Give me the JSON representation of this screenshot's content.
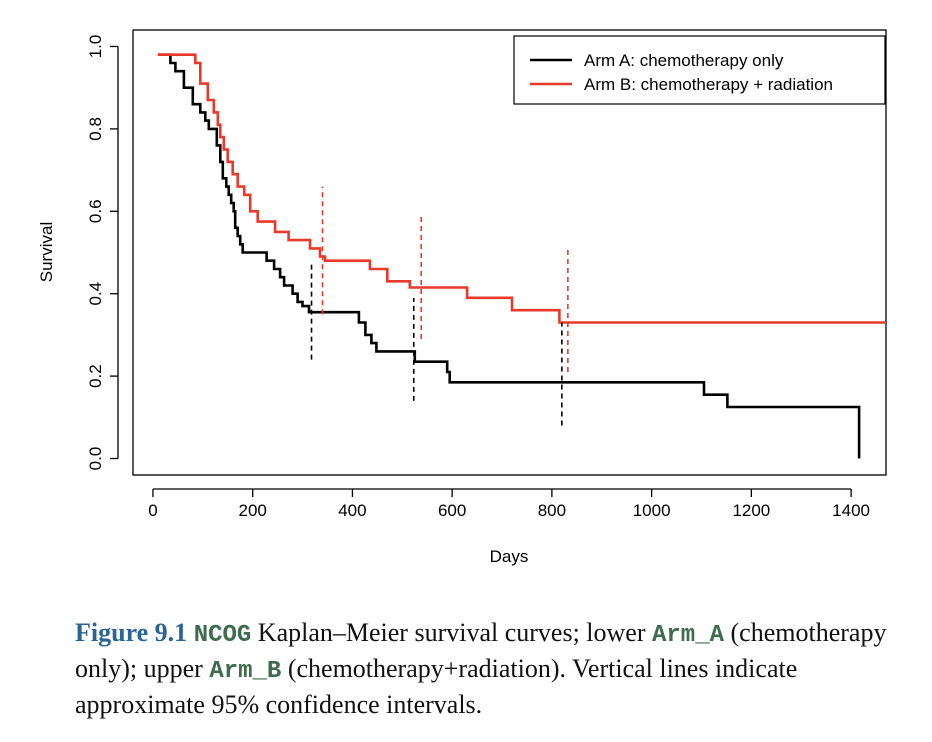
{
  "chart_data": {
    "type": "line",
    "subtype": "kaplan-meier step curves",
    "xlabel": "Days",
    "ylabel": "Survival",
    "xlim": [
      -40,
      1470
    ],
    "ylim": [
      -0.04,
      1.04
    ],
    "x_ticks": [
      0,
      200,
      400,
      600,
      800,
      1000,
      1200,
      1400
    ],
    "y_ticks": [
      0.0,
      0.2,
      0.4,
      0.6,
      0.8,
      1.0
    ],
    "x_tick_labels": [
      "0",
      "200",
      "400",
      "600",
      "800",
      "1000",
      "1200",
      "1400"
    ],
    "y_tick_labels": [
      "0.0",
      "0.2",
      "0.4",
      "0.6",
      "0.8",
      "1.0"
    ],
    "grid": false,
    "legend_position": "top-right",
    "series": [
      {
        "name": "Arm A: chemotherapy only",
        "color": "#000000",
        "steps": [
          [
            10,
            0.98
          ],
          [
            35,
            0.96
          ],
          [
            45,
            0.94
          ],
          [
            62,
            0.9
          ],
          [
            80,
            0.86
          ],
          [
            95,
            0.84
          ],
          [
            105,
            0.82
          ],
          [
            112,
            0.8
          ],
          [
            128,
            0.76
          ],
          [
            135,
            0.72
          ],
          [
            140,
            0.68
          ],
          [
            147,
            0.66
          ],
          [
            152,
            0.64
          ],
          [
            157,
            0.62
          ],
          [
            162,
            0.6
          ],
          [
            165,
            0.56
          ],
          [
            170,
            0.54
          ],
          [
            175,
            0.52
          ],
          [
            180,
            0.5
          ],
          [
            223,
            0.5
          ],
          [
            228,
            0.48
          ],
          [
            243,
            0.46
          ],
          [
            255,
            0.44
          ],
          [
            263,
            0.42
          ],
          [
            280,
            0.4
          ],
          [
            290,
            0.38
          ],
          [
            300,
            0.37
          ],
          [
            313,
            0.355
          ],
          [
            405,
            0.355
          ],
          [
            413,
            0.33
          ],
          [
            426,
            0.3
          ],
          [
            438,
            0.28
          ],
          [
            448,
            0.26
          ],
          [
            520,
            0.26
          ],
          [
            525,
            0.235
          ],
          [
            585,
            0.235
          ],
          [
            590,
            0.21
          ],
          [
            595,
            0.185
          ],
          [
            1100,
            0.185
          ],
          [
            1105,
            0.155
          ],
          [
            1148,
            0.155
          ],
          [
            1152,
            0.125
          ],
          [
            1414,
            0.125
          ],
          [
            1416,
            0.0
          ]
        ],
        "ci_lines": [
          {
            "day": 318,
            "low": 0.24,
            "high": 0.48
          },
          {
            "day": 523,
            "low": 0.14,
            "high": 0.39
          },
          {
            "day": 820,
            "low": 0.08,
            "high": 0.33
          }
        ]
      },
      {
        "name": "Arm B: chemotherapy + radiation",
        "color": "#e8392b",
        "steps": [
          [
            10,
            0.98
          ],
          [
            85,
            0.96
          ],
          [
            95,
            0.91
          ],
          [
            110,
            0.87
          ],
          [
            122,
            0.84
          ],
          [
            130,
            0.81
          ],
          [
            135,
            0.78
          ],
          [
            142,
            0.75
          ],
          [
            150,
            0.72
          ],
          [
            160,
            0.69
          ],
          [
            170,
            0.66
          ],
          [
            183,
            0.64
          ],
          [
            195,
            0.6
          ],
          [
            210,
            0.575
          ],
          [
            245,
            0.55
          ],
          [
            272,
            0.53
          ],
          [
            315,
            0.51
          ],
          [
            335,
            0.49
          ],
          [
            345,
            0.48
          ],
          [
            435,
            0.46
          ],
          [
            470,
            0.43
          ],
          [
            515,
            0.415
          ],
          [
            630,
            0.39
          ],
          [
            720,
            0.36
          ],
          [
            815,
            0.33
          ],
          [
            1470,
            0.33
          ]
        ],
        "ci_lines": [
          {
            "day": 340,
            "low": 0.35,
            "high": 0.66
          },
          {
            "day": 538,
            "low": 0.29,
            "high": 0.59
          },
          {
            "day": 832,
            "low": 0.21,
            "high": 0.51
          }
        ]
      }
    ]
  },
  "caption": {
    "label": "Figure 9.1",
    "code_1": "NCOG",
    "text_1": " Kaplan–Meier survival curves; lower ",
    "code_2": "Arm_A",
    "text_2": " (chemotherapy only); upper ",
    "code_3": "Arm_B",
    "text_3": " (chemotherapy+radiation). Vertical lines indicate approximate 95% confidence intervals."
  }
}
